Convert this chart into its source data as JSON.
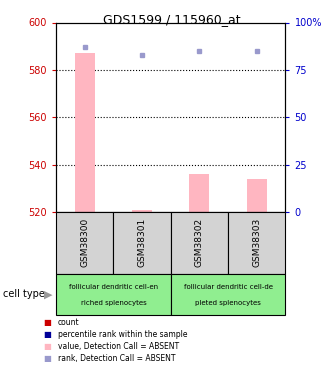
{
  "title": "GDS1599 / 115960_at",
  "samples": [
    "GSM38300",
    "GSM38301",
    "GSM38302",
    "GSM38303"
  ],
  "bar_values": [
    587,
    521,
    536,
    534
  ],
  "bar_bottom": 520,
  "rank_values": [
    87,
    83,
    85,
    85
  ],
  "ylim_left": [
    520,
    600
  ],
  "ylim_right": [
    0,
    100
  ],
  "yticks_left": [
    520,
    540,
    560,
    580,
    600
  ],
  "yticks_right": [
    0,
    25,
    50,
    75,
    100
  ],
  "yticklabels_right": [
    "0",
    "25",
    "50",
    "75",
    "100%"
  ],
  "grid_lines": [
    540,
    560,
    580
  ],
  "bar_color": "#FFB6C1",
  "rank_color": "#9999CC",
  "bar_width": 0.35,
  "cell_type_labels_line1": [
    "follicular dendritic cell-en",
    "follicular dendritic cell-de"
  ],
  "cell_type_labels_line2": [
    "riched splenocytes",
    "pleted splenocytes"
  ],
  "sample_box_color": "#D3D3D3",
  "legend_items": [
    {
      "label": "count",
      "color": "#CC0000"
    },
    {
      "label": "percentile rank within the sample",
      "color": "#000099"
    },
    {
      "label": "value, Detection Call = ABSENT",
      "color": "#FFB6C1"
    },
    {
      "label": "rank, Detection Call = ABSENT",
      "color": "#9999CC"
    }
  ],
  "left_axis_color": "#CC0000",
  "right_axis_color": "#0000CC",
  "title_fontsize": 9
}
